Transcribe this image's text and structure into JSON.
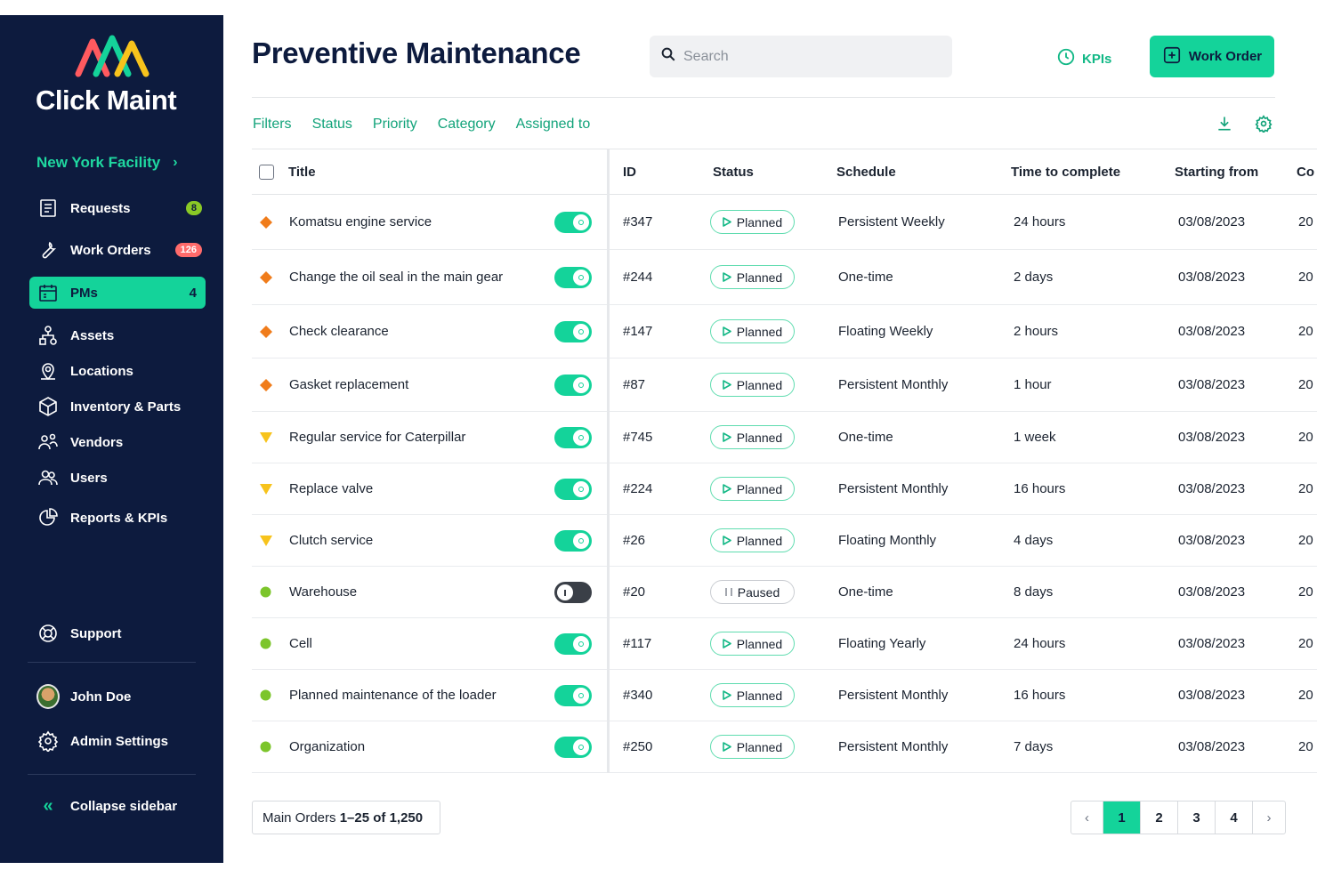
{
  "app": {
    "name": "Click Maint"
  },
  "sidebar": {
    "facility": "New York Facility",
    "items": [
      {
        "label": "Requests",
        "icon": "requests-icon",
        "badge": "8",
        "badge_color": "#8ac926"
      },
      {
        "label": "Work Orders",
        "icon": "wrench-icon",
        "badge": "126",
        "badge_color": "#ff6b6b"
      },
      {
        "label": "PMs",
        "icon": "calendar-icon",
        "badge": "4",
        "active": true
      },
      {
        "label": "Assets",
        "icon": "assets-icon"
      },
      {
        "label": "Locations",
        "icon": "location-pin-icon"
      },
      {
        "label": "Inventory & Parts",
        "icon": "box-icon"
      },
      {
        "label": "Vendors",
        "icon": "vendors-icon"
      },
      {
        "label": "Users",
        "icon": "users-icon"
      },
      {
        "label": "Reports & KPIs",
        "icon": "pie-chart-icon"
      }
    ],
    "support": "Support",
    "user_name": "John Doe",
    "admin_settings": "Admin Settings",
    "collapse": "Collapse sidebar"
  },
  "header": {
    "title": "Preventive Maintenance",
    "search_placeholder": "Search",
    "kpis_label": "KPIs",
    "work_order_label": "Work Order"
  },
  "filters": [
    "Filters",
    "Status",
    "Priority",
    "Category",
    "Assigned to"
  ],
  "table": {
    "columns": [
      "Title",
      "ID",
      "Status",
      "Schedule",
      "Time to complete",
      "Starting from",
      "Co"
    ],
    "rows": [
      {
        "priority": "high",
        "title": "Komatsu engine service",
        "enabled": true,
        "id": "#347",
        "status": "Planned",
        "schedule": "Persistent Weekly",
        "time": "24 hours",
        "start": "03/08/2023",
        "co": "20"
      },
      {
        "priority": "high",
        "title": "Change the oil seal in the main gear",
        "enabled": true,
        "id": "#244",
        "status": "Planned",
        "schedule": "One-time",
        "time": "2 days",
        "start": "03/08/2023",
        "co": "20"
      },
      {
        "priority": "high",
        "title": "Check clearance",
        "enabled": true,
        "id": "#147",
        "status": "Planned",
        "schedule": "Floating Weekly",
        "time": "2 hours",
        "start": "03/08/2023",
        "co": "20"
      },
      {
        "priority": "high",
        "title": "Gasket replacement",
        "enabled": true,
        "id": "#87",
        "status": "Planned",
        "schedule": "Persistent Monthly",
        "time": "1 hour",
        "start": "03/08/2023",
        "co": "20"
      },
      {
        "priority": "medium",
        "title": "Regular service for Caterpillar",
        "enabled": true,
        "id": "#745",
        "status": "Planned",
        "schedule": "One-time",
        "time": "1 week",
        "start": "03/08/2023",
        "co": "20"
      },
      {
        "priority": "medium",
        "title": "Replace valve",
        "enabled": true,
        "id": "#224",
        "status": "Planned",
        "schedule": "Persistent Monthly",
        "time": "16 hours",
        "start": "03/08/2023",
        "co": "20"
      },
      {
        "priority": "medium",
        "title": "Clutch service",
        "enabled": true,
        "id": "#26",
        "status": "Planned",
        "schedule": "Floating Monthly",
        "time": "4 days",
        "start": "03/08/2023",
        "co": "20"
      },
      {
        "priority": "low",
        "title": "Warehouse",
        "enabled": false,
        "id": "#20",
        "status": "Paused",
        "schedule": "One-time",
        "time": "8 days",
        "start": "03/08/2023",
        "co": "20"
      },
      {
        "priority": "low",
        "title": "Cell",
        "enabled": true,
        "id": "#117",
        "status": "Planned",
        "schedule": "Floating Yearly",
        "time": "24 hours",
        "start": "03/08/2023",
        "co": "20"
      },
      {
        "priority": "low",
        "title": "Planned maintenance of the loader",
        "enabled": true,
        "id": "#340",
        "status": "Planned",
        "schedule": "Persistent Monthly",
        "time": "16 hours",
        "start": "03/08/2023",
        "co": "20"
      },
      {
        "priority": "low",
        "title": "Organization",
        "enabled": true,
        "id": "#250",
        "status": "Planned",
        "schedule": "Persistent Monthly",
        "time": "7 days",
        "start": "03/08/2023",
        "co": "20"
      }
    ]
  },
  "pagination": {
    "prefix": "Main Orders ",
    "range": "1–25 of 1,250",
    "pages": [
      "1",
      "2",
      "3",
      "4"
    ],
    "current": "1"
  },
  "colors": {
    "accent": "#14d39a",
    "sidebar_bg": "#0d1b3e",
    "priority_high": "#f07c1b",
    "priority_medium": "#f7c31c",
    "priority_low": "#7cc52b"
  }
}
